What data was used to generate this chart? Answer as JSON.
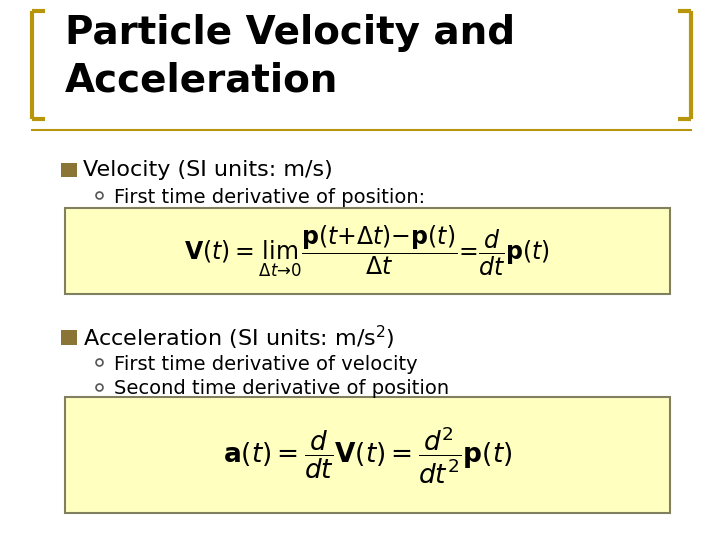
{
  "title": "Particle Velocity and\nAcceleration",
  "title_fontsize": 28,
  "title_color": "#000000",
  "bg_color": "#ffffff",
  "bullet_color": "#8B7536",
  "bracket_color": "#B8960C",
  "box_fill_color": "#FFFFC0",
  "box_edge_color": "#808060",
  "line_color": "#B8960C",
  "bullet1_text": "Velocity (SI units: m/s)",
  "bullet1_sub": "First time derivative of position:",
  "bullet2_text": "Acceleration (SI units: m/s$^2$)",
  "bullet2_sub1": "First time derivative of velocity",
  "bullet2_sub2": "Second time derivative of position",
  "text_fontsize": 16,
  "sub_fontsize": 14,
  "eq_fontsize": 17
}
